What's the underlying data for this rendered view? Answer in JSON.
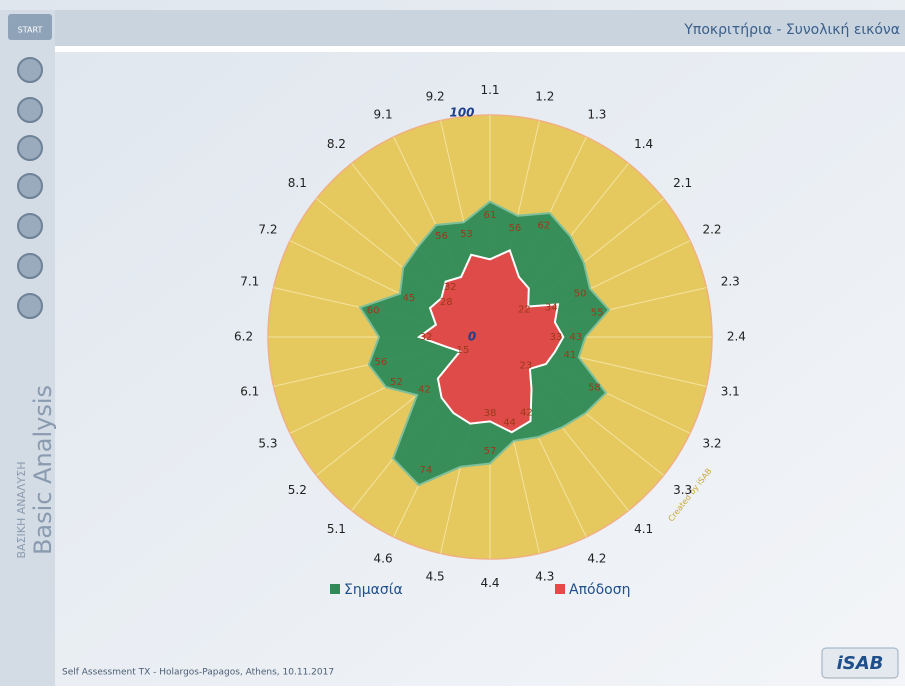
{
  "header": {
    "title": "Υποκριτήρια - Συνολική εικόνα",
    "start": "START"
  },
  "sidebar": {
    "title": "Basic Analysis",
    "subtitle": "ΒΑΣΙΚΗ ΑΝΑΛΥΣΗ"
  },
  "footer": {
    "text": "Self Assessment TX - Holargos-Papagos, Athens, 10.11.2017",
    "logo": "iSAB",
    "credit": "Created by iSAB"
  },
  "chart_data": {
    "type": "radar",
    "categories": [
      "1.1",
      "1.2",
      "1.3",
      "1.4",
      "2.1",
      "2.2",
      "2.3",
      "2.4",
      "3.1",
      "3.2",
      "3.3",
      "4.1",
      "4.2",
      "4.3",
      "4.4",
      "4.5",
      "4.6",
      "5.1",
      "5.2",
      "5.3",
      "6.1",
      "6.2",
      "7.1",
      "7.2",
      "8.1",
      "8.2",
      "9.1",
      "9.2"
    ],
    "ylim": [
      0,
      100
    ],
    "yticks": [
      0,
      100
    ],
    "series": [
      {
        "name": "Σημασία",
        "color": "#2e8b57",
        "values": [
          61,
          56,
          62,
          58,
          54,
          50,
          55,
          43,
          41,
          58,
          55,
          52,
          50,
          48,
          57,
          60,
          74,
          70,
          42,
          52,
          56,
          50,
          60,
          45,
          50,
          52,
          56,
          53
        ],
        "value_labels": [
          "61",
          "56",
          "62",
          null,
          null,
          "50",
          "55",
          "43",
          "41",
          "58",
          null,
          null,
          null,
          null,
          "57",
          null,
          "74",
          null,
          "42",
          "52",
          "56",
          null,
          "60",
          "45",
          null,
          null,
          "56",
          "53"
        ]
      },
      {
        "name": "Απόδοση",
        "color": "#e84848",
        "values": [
          35,
          40,
          30,
          28,
          22,
          34,
          30,
          33,
          30,
          28,
          23,
          30,
          42,
          44,
          38,
          40,
          38,
          35,
          30,
          15,
          20,
          32,
          25,
          30,
          28,
          32,
          30,
          38
        ],
        "value_labels": [
          null,
          null,
          null,
          null,
          "22",
          "34",
          null,
          "33",
          null,
          null,
          "23",
          null,
          "42",
          "44",
          "38",
          null,
          null,
          null,
          null,
          "15",
          null,
          "32",
          null,
          null,
          "28",
          "32",
          null,
          null
        ]
      }
    ]
  }
}
